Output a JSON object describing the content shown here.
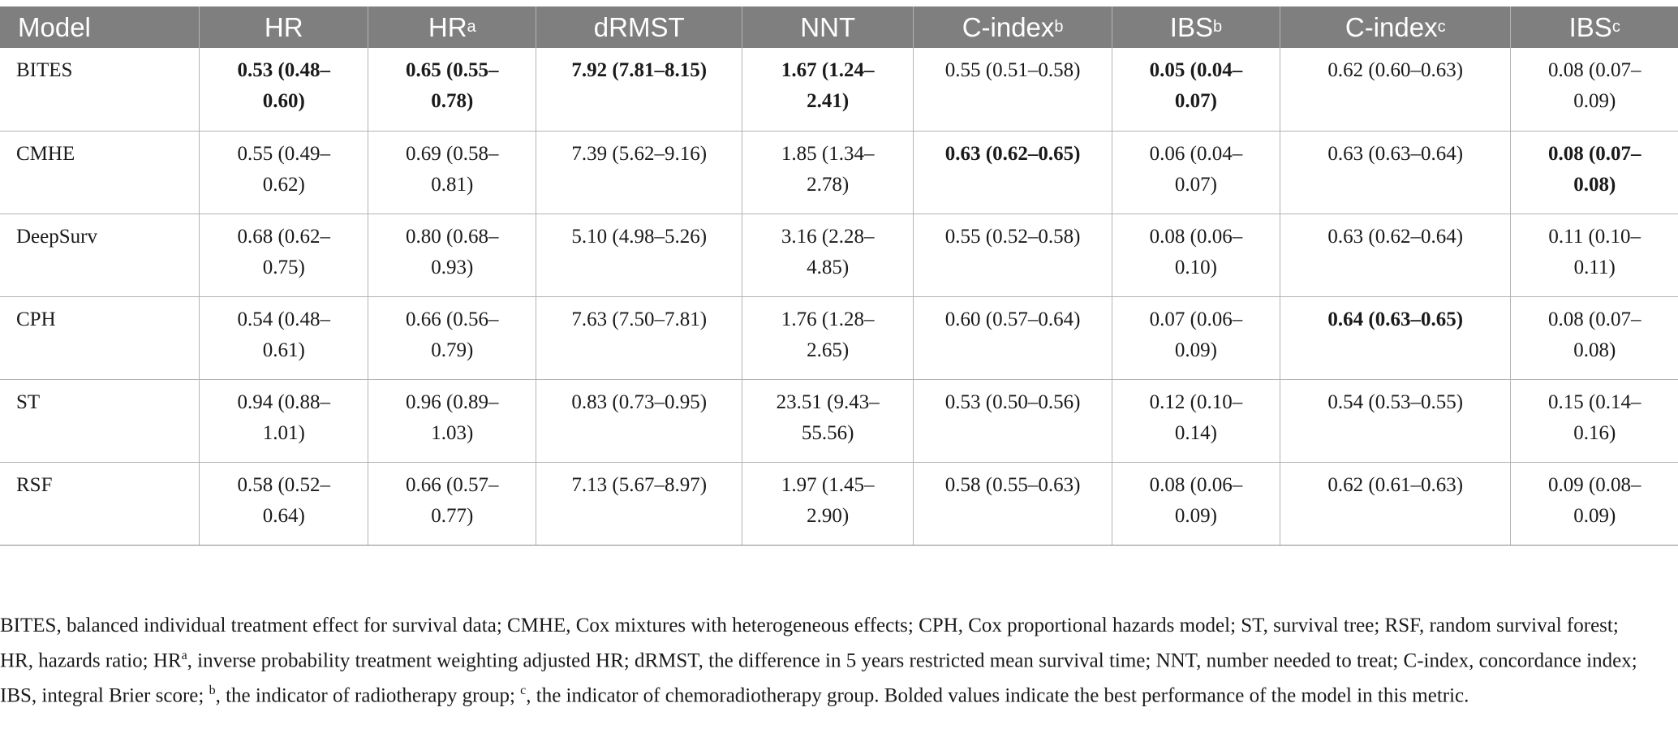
{
  "table": {
    "headers": [
      {
        "text": "Model",
        "sup": ""
      },
      {
        "text": "HR",
        "sup": ""
      },
      {
        "text": "HR",
        "sup": "a"
      },
      {
        "text": "dRMST",
        "sup": ""
      },
      {
        "text": "NNT",
        "sup": ""
      },
      {
        "text": "C-index",
        "sup": "b"
      },
      {
        "text": "IBS",
        "sup": "b"
      },
      {
        "text": "C-index",
        "sup": "c"
      },
      {
        "text": "IBS",
        "sup": "c"
      }
    ],
    "rows": [
      {
        "model": "BITES",
        "cells": [
          {
            "text": "0.53 (0.48–0.60)",
            "bold": true
          },
          {
            "text": "0.65 (0.55–0.78)",
            "bold": true
          },
          {
            "text": "7.92 (7.81–8.15)",
            "bold": true
          },
          {
            "text": "1.67 (1.24–2.41)",
            "bold": true
          },
          {
            "text": "0.55 (0.51–0.58)",
            "bold": false
          },
          {
            "text": "0.05 (0.04–0.07)",
            "bold": true
          },
          {
            "text": "0.62 (0.60–0.63)",
            "bold": false
          },
          {
            "text": "0.08 (0.07–0.09)",
            "bold": false
          }
        ]
      },
      {
        "model": "CMHE",
        "cells": [
          {
            "text": "0.55 (0.49–0.62)",
            "bold": false
          },
          {
            "text": "0.69 (0.58–0.81)",
            "bold": false
          },
          {
            "text": "7.39 (5.62–9.16)",
            "bold": false
          },
          {
            "text": "1.85 (1.34–2.78)",
            "bold": false
          },
          {
            "text": "0.63 (0.62–0.65)",
            "bold": true
          },
          {
            "text": "0.06 (0.04–0.07)",
            "bold": false
          },
          {
            "text": "0.63 (0.63–0.64)",
            "bold": false
          },
          {
            "text": "0.08 (0.07–0.08)",
            "bold": true
          }
        ]
      },
      {
        "model": "DeepSurv",
        "cells": [
          {
            "text": "0.68 (0.62–0.75)",
            "bold": false
          },
          {
            "text": "0.80 (0.68–0.93)",
            "bold": false
          },
          {
            "text": "5.10 (4.98–5.26)",
            "bold": false
          },
          {
            "text": "3.16 (2.28–4.85)",
            "bold": false
          },
          {
            "text": "0.55 (0.52–0.58)",
            "bold": false
          },
          {
            "text": "0.08 (0.06–0.10)",
            "bold": false
          },
          {
            "text": "0.63 (0.62–0.64)",
            "bold": false
          },
          {
            "text": "0.11 (0.10–0.11)",
            "bold": false
          }
        ]
      },
      {
        "model": "CPH",
        "cells": [
          {
            "text": "0.54 (0.48–0.61)",
            "bold": false
          },
          {
            "text": "0.66 (0.56–0.79)",
            "bold": false
          },
          {
            "text": "7.63 (7.50–7.81)",
            "bold": false
          },
          {
            "text": "1.76 (1.28–2.65)",
            "bold": false
          },
          {
            "text": "0.60 (0.57–0.64)",
            "bold": false
          },
          {
            "text": "0.07 (0.06–0.09)",
            "bold": false
          },
          {
            "text": "0.64 (0.63–0.65)",
            "bold": true
          },
          {
            "text": "0.08 (0.07–0.08)",
            "bold": false
          }
        ]
      },
      {
        "model": "ST",
        "cells": [
          {
            "text": "0.94 (0.88–1.01)",
            "bold": false
          },
          {
            "text": "0.96 (0.89–1.03)",
            "bold": false
          },
          {
            "text": "0.83 (0.73–0.95)",
            "bold": false
          },
          {
            "text": "23.51 (9.43–55.56)",
            "bold": false
          },
          {
            "text": "0.53 (0.50–0.56)",
            "bold": false
          },
          {
            "text": "0.12 (0.10–0.14)",
            "bold": false
          },
          {
            "text": "0.54 (0.53–0.55)",
            "bold": false
          },
          {
            "text": "0.15 (0.14–0.16)",
            "bold": false
          }
        ]
      },
      {
        "model": "RSF",
        "cells": [
          {
            "text": "0.58 (0.52–0.64)",
            "bold": false
          },
          {
            "text": "0.66 (0.57–0.77)",
            "bold": false
          },
          {
            "text": "7.13 (5.67–8.97)",
            "bold": false
          },
          {
            "text": "1.97 (1.45–2.90)",
            "bold": false
          },
          {
            "text": "0.58 (0.55–0.63)",
            "bold": false
          },
          {
            "text": "0.08 (0.06–0.09)",
            "bold": false
          },
          {
            "text": "0.62 (0.61–0.63)",
            "bold": false
          },
          {
            "text": "0.09 (0.08–0.09)",
            "bold": false
          }
        ]
      }
    ]
  },
  "footnote": [
    {
      "text": "BITES, balanced individual treatment effect for survival data; CMHE, Cox mixtures with heterogeneous effects; CPH, Cox proportional hazards model; ST, survival tree; RSF, random survival forest; HR, hazards ratio; HR",
      "sup": false
    },
    {
      "text": "a",
      "sup": true
    },
    {
      "text": ", inverse probability treatment weighting adjusted HR; dRMST, the difference in 5 years restricted mean survival time; NNT, number needed to treat; C-index, concordance index; IBS, integral Brier score; ",
      "sup": false
    },
    {
      "text": "b",
      "sup": true
    },
    {
      "text": ", the indicator of radiotherapy group; ",
      "sup": false
    },
    {
      "text": "c",
      "sup": true
    },
    {
      "text": ", the indicator of chemoradiotherapy group. Bolded values indicate the best performance of the model in this metric.",
      "sup": false
    }
  ]
}
